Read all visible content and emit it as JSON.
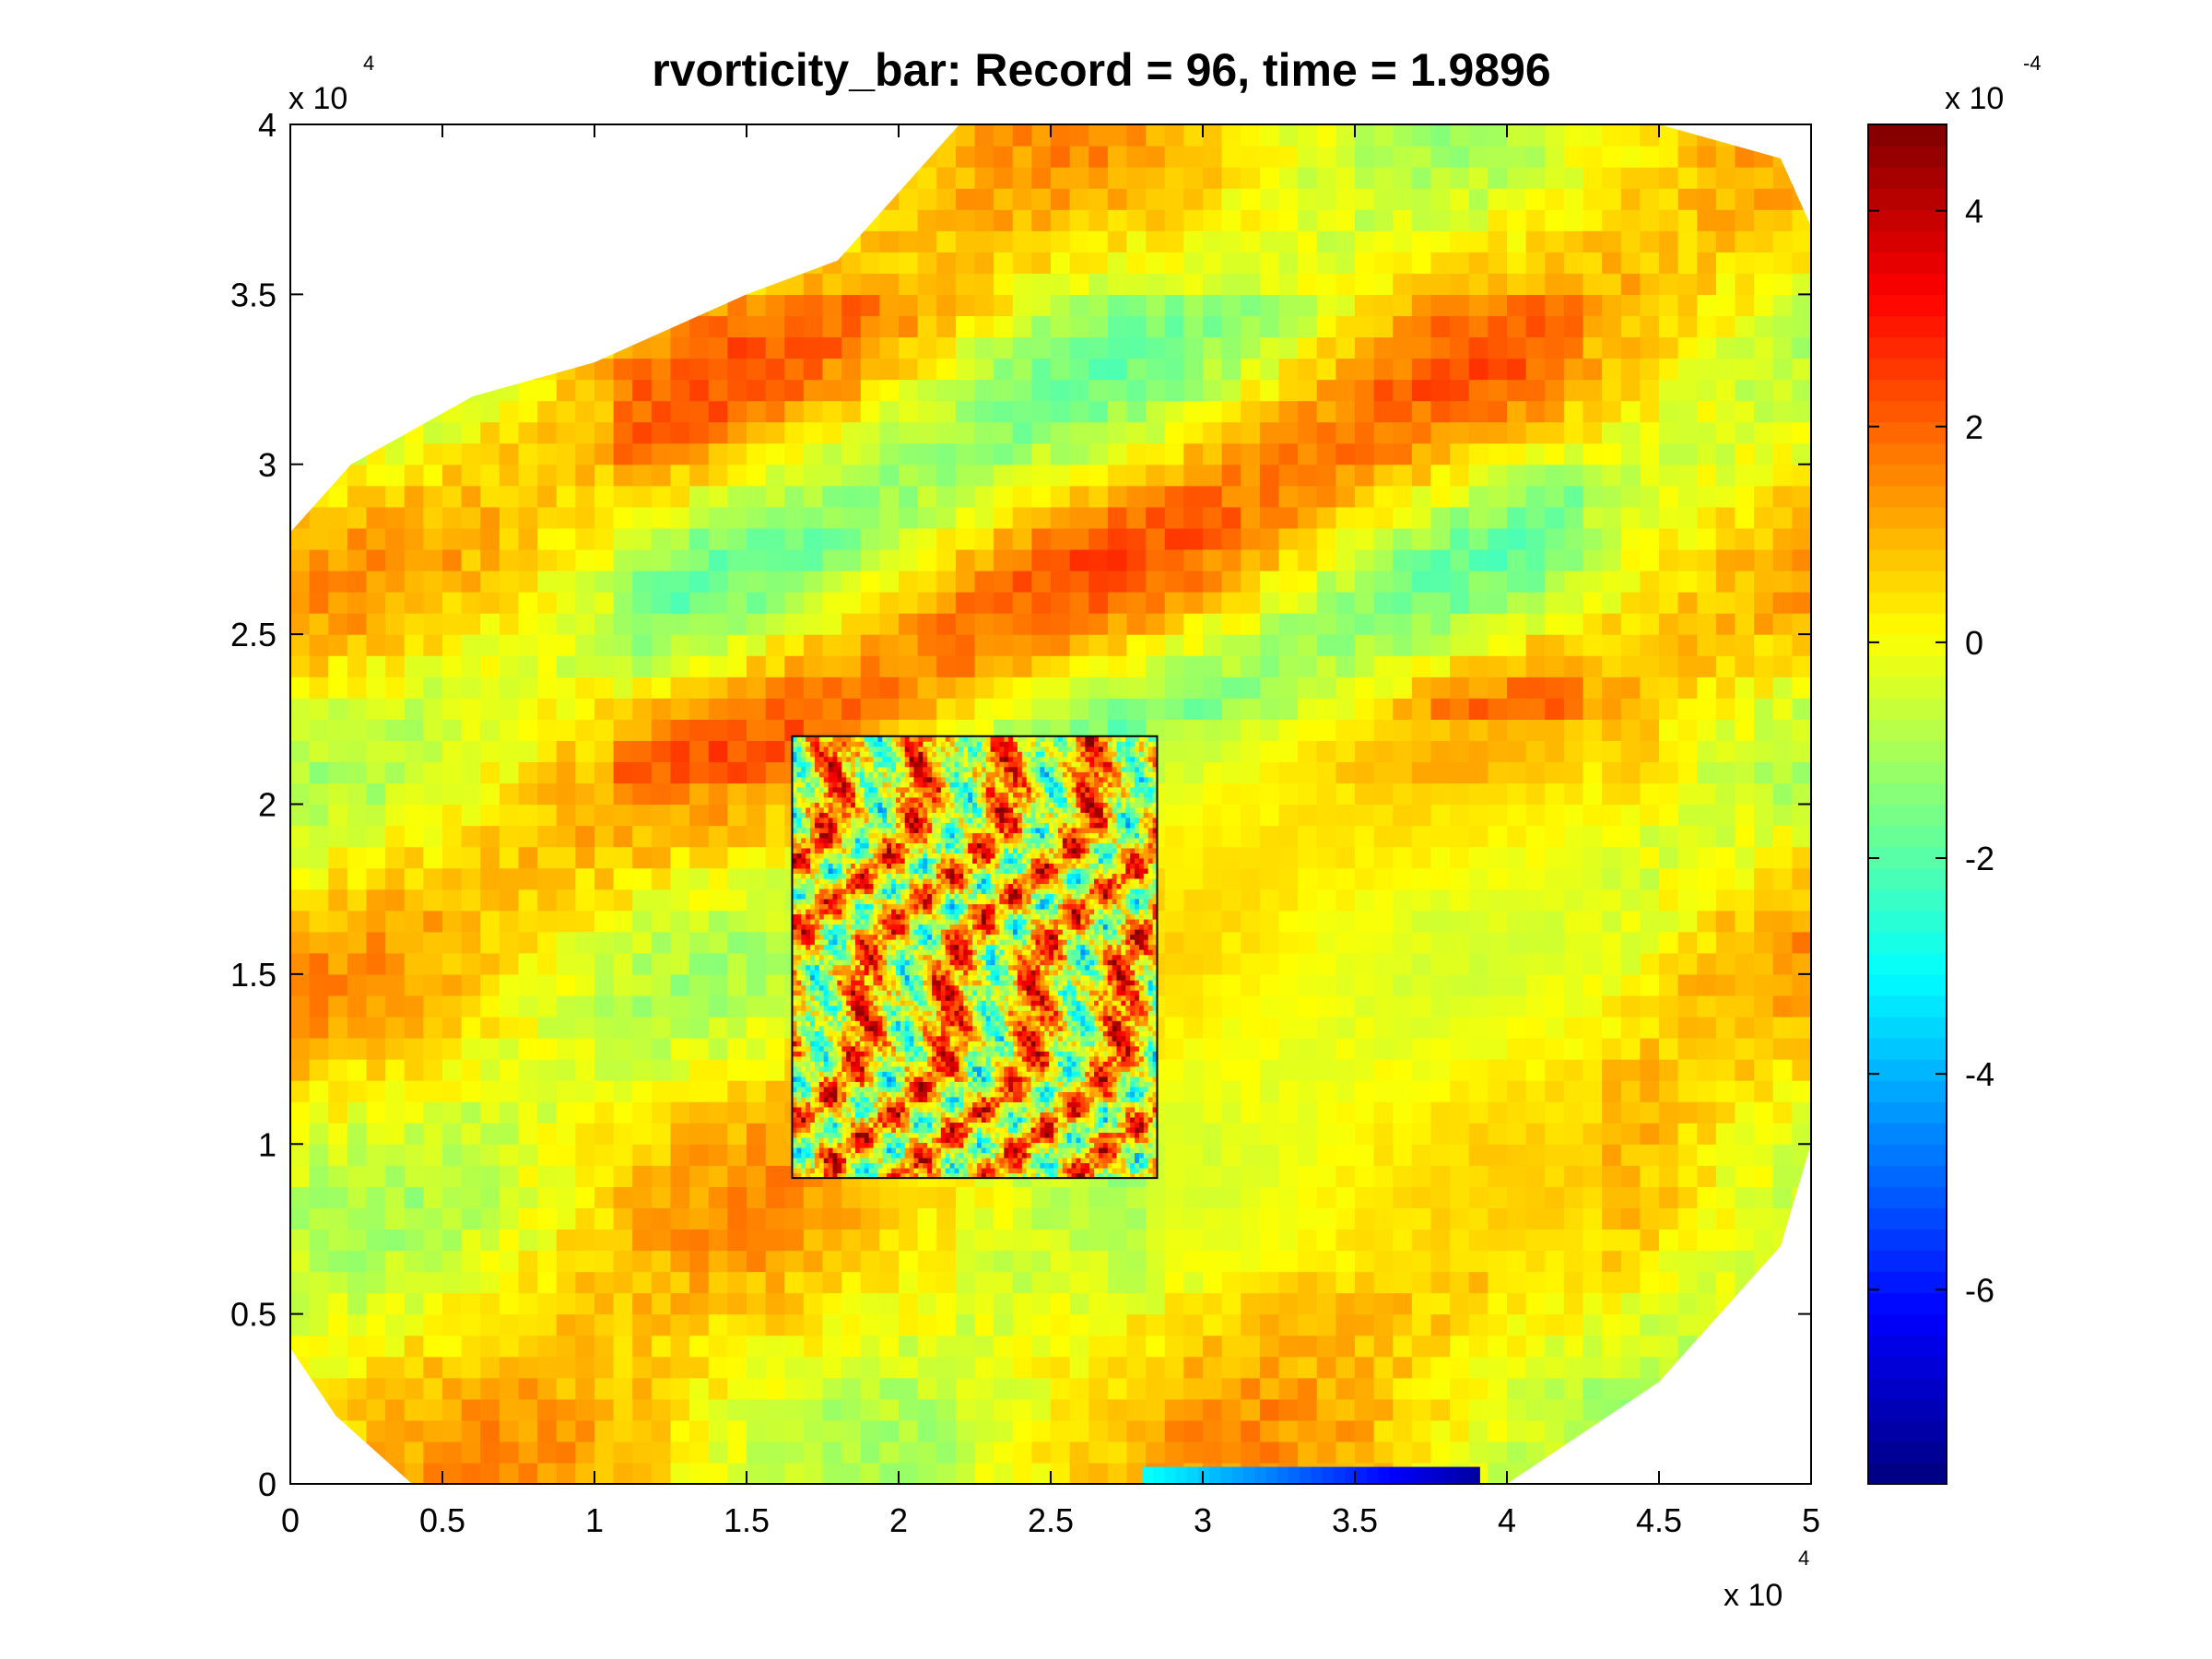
{
  "chart_data": {
    "type": "heatmap",
    "title": "rvorticity_bar:    Record = 96,    time = 1.9896",
    "xlabel": "",
    "ylabel": "",
    "x_ticks": [
      0,
      0.5,
      1,
      1.5,
      2,
      2.5,
      3,
      3.5,
      4,
      4.5,
      5
    ],
    "y_ticks": [
      0,
      0.5,
      1,
      1.5,
      2,
      2.5,
      3,
      3.5,
      4
    ],
    "x_tick_labels": [
      "0",
      "0.5",
      "1",
      "1.5",
      "2",
      "2.5",
      "3",
      "3.5",
      "4",
      "4.5",
      "5"
    ],
    "y_tick_labels": [
      "0",
      "0.5",
      "1",
      "1.5",
      "2",
      "2.5",
      "3",
      "3.5",
      "4"
    ],
    "xlim": [
      0,
      5
    ],
    "ylim": [
      0,
      4
    ],
    "x_multiplier": {
      "base": "x 10",
      "exponent": "4"
    },
    "y_multiplier": {
      "base": "x 10",
      "exponent": "4"
    },
    "colorbar": {
      "label_multiplier": {
        "base": "x 10",
        "exponent": "-4"
      },
      "range": [
        -7.8,
        4.8
      ],
      "ticks": [
        -6,
        -4,
        -2,
        0,
        2,
        4
      ],
      "tick_labels": [
        "-6",
        "-4",
        "-2",
        "0",
        "2",
        "4"
      ],
      "colormap": "jet"
    },
    "coarse_grid": {
      "resolution_x1e4": 0.0625,
      "description_domain_polygon_x1e4": [
        [
          0.4,
          0
        ],
        [
          4.0,
          0
        ],
        [
          4.5,
          0.3
        ],
        [
          4.9,
          0.7
        ],
        [
          5.0,
          1.0
        ],
        [
          5.0,
          3.7
        ],
        [
          4.9,
          3.9
        ],
        [
          4.5,
          4.0
        ],
        [
          2.2,
          4.0
        ],
        [
          1.8,
          3.6
        ],
        [
          1.5,
          3.5
        ],
        [
          1.0,
          3.3
        ],
        [
          0.6,
          3.2
        ],
        [
          0.2,
          3.0
        ],
        [
          0,
          2.8
        ],
        [
          0,
          0.4
        ],
        [
          0.15,
          0.2
        ]
      ]
    },
    "nested_grid_box_x1e4": {
      "x": [
        1.65,
        2.85
      ],
      "y": [
        0.9,
        2.2
      ]
    },
    "grid": false
  }
}
